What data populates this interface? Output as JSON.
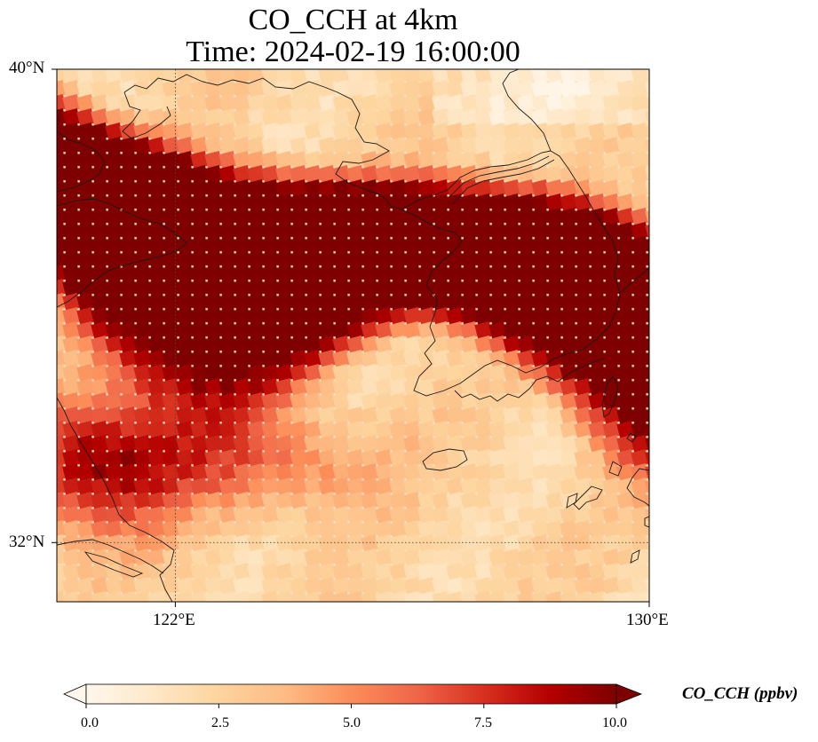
{
  "title": {
    "line1": "CO_CCH at 4km",
    "line2": "Time: 2024-02-19 16:00:00"
  },
  "map": {
    "type": "heatmap",
    "variable": "CO_CCH",
    "units": "ppbv",
    "lon_range": [
      120,
      130
    ],
    "lat_range": [
      31,
      40
    ],
    "lat_ticks": [
      {
        "value": 40,
        "label": "40°N"
      },
      {
        "value": 32,
        "label": "32°N"
      }
    ],
    "lon_ticks": [
      {
        "value": 122,
        "label": "122°E"
      },
      {
        "value": 130,
        "label": "130°E"
      }
    ],
    "gridlines": {
      "lons": [
        122
      ],
      "lats": [
        32
      ],
      "style": "dotted"
    },
    "colormap": "OrRd",
    "plume": "high CO_CCH band (>=10 ppbv) from northwest China coast across Yellow Sea to southern Korea"
  },
  "colorbar": {
    "label": "CO_CCH (ppbv)",
    "vmin": 0,
    "vmax": 10,
    "extend": "both",
    "ticks": [
      "0.0",
      "2.5",
      "5.0",
      "7.5",
      "10.0"
    ],
    "colors": [
      "#fff7ec",
      "#fee8c8",
      "#fdd49e",
      "#fdbb84",
      "#fc8d59",
      "#ef6548",
      "#d7301f",
      "#b30000",
      "#7f0000"
    ]
  }
}
